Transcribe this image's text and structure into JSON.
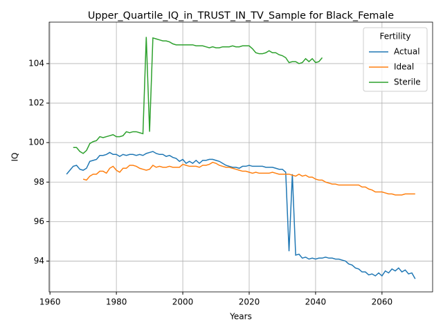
{
  "chart_data": {
    "type": "line",
    "title": "Upper_Quartile_IQ_in_TRUST_IN_TV_Sample for Black_Female",
    "xlabel": "Years",
    "ylabel": "IQ",
    "legend_title": "Fertility",
    "legend": "upper right",
    "grid": true,
    "x": [
      1965,
      1966,
      1967,
      1968,
      1969,
      1970,
      1971,
      1972,
      1973,
      1974,
      1975,
      1976,
      1977,
      1978,
      1979,
      1980,
      1981,
      1982,
      1983,
      1984,
      1985,
      1986,
      1987,
      1988,
      1989,
      1990,
      1991,
      1992,
      1993,
      1994,
      1995,
      1996,
      1997,
      1998,
      1999,
      2000,
      2001,
      2002,
      2003,
      2004,
      2005,
      2006,
      2007,
      2008,
      2009,
      2010,
      2011,
      2012,
      2013,
      2014,
      2015,
      2016,
      2017,
      2018,
      2019,
      2020,
      2021,
      2022,
      2023,
      2024,
      2025,
      2026,
      2027,
      2028,
      2029,
      2030,
      2031,
      2032,
      2033,
      2034,
      2035,
      2036,
      2037,
      2038,
      2039,
      2040,
      2041,
      2042,
      2043,
      2044,
      2045,
      2046,
      2047,
      2048,
      2049,
      2050,
      2051,
      2052,
      2053,
      2054,
      2055,
      2056,
      2057,
      2058,
      2059,
      2060,
      2061,
      2062,
      2063,
      2064,
      2065,
      2066,
      2067,
      2068,
      2069,
      2070
    ],
    "series": [
      {
        "name": "Actual",
        "color": "#1f77b4",
        "values": [
          98.4,
          98.6,
          98.8,
          98.85,
          98.65,
          98.6,
          98.7,
          99.05,
          99.1,
          99.15,
          99.35,
          99.35,
          99.4,
          99.5,
          99.4,
          99.4,
          99.3,
          99.4,
          99.35,
          99.4,
          99.4,
          99.35,
          99.4,
          99.35,
          99.45,
          99.5,
          99.55,
          99.45,
          99.4,
          99.4,
          99.3,
          99.35,
          99.25,
          99.2,
          99.05,
          99.15,
          98.95,
          99.05,
          98.95,
          99.1,
          98.95,
          99.1,
          99.1,
          99.15,
          99.15,
          99.1,
          99.05,
          98.95,
          98.85,
          98.8,
          98.75,
          98.75,
          98.7,
          98.8,
          98.8,
          98.85,
          98.8,
          98.8,
          98.8,
          98.8,
          98.75,
          98.75,
          98.75,
          98.7,
          98.65,
          98.65,
          98.5,
          94.5,
          98.4,
          94.3,
          94.35,
          94.15,
          94.2,
          94.1,
          94.15,
          94.1,
          94.15,
          94.15,
          94.2,
          94.15,
          94.15,
          94.1,
          94.1,
          94.05,
          94.0,
          93.85,
          93.8,
          93.65,
          93.6,
          93.45,
          93.45,
          93.3,
          93.35,
          93.25,
          93.4,
          93.25,
          93.5,
          93.4,
          93.6,
          93.5,
          93.65,
          93.45,
          93.55,
          93.35,
          93.4,
          93.1
        ]
      },
      {
        "name": "Ideal",
        "color": "#ff7f0e",
        "values": [
          null,
          null,
          null,
          null,
          null,
          98.15,
          98.1,
          98.3,
          98.4,
          98.4,
          98.55,
          98.55,
          98.45,
          98.7,
          98.8,
          98.6,
          98.5,
          98.7,
          98.7,
          98.85,
          98.85,
          98.8,
          98.7,
          98.65,
          98.6,
          98.65,
          98.85,
          98.75,
          98.8,
          98.75,
          98.75,
          98.8,
          98.75,
          98.75,
          98.75,
          98.9,
          98.85,
          98.8,
          98.8,
          98.8,
          98.75,
          98.85,
          98.85,
          98.9,
          99.0,
          98.95,
          98.85,
          98.8,
          98.75,
          98.75,
          98.7,
          98.65,
          98.6,
          98.55,
          98.55,
          98.5,
          98.45,
          98.5,
          98.45,
          98.45,
          98.45,
          98.45,
          98.5,
          98.45,
          98.4,
          98.4,
          98.4,
          98.4,
          98.35,
          98.3,
          98.4,
          98.3,
          98.35,
          98.25,
          98.25,
          98.15,
          98.1,
          98.1,
          98.0,
          97.95,
          97.9,
          97.9,
          97.85,
          97.85,
          97.85,
          97.85,
          97.85,
          97.85,
          97.85,
          97.75,
          97.75,
          97.65,
          97.6,
          97.5,
          97.5,
          97.5,
          97.45,
          97.4,
          97.4,
          97.35,
          97.35,
          97.35,
          97.4,
          97.4,
          97.4,
          97.4
        ]
      },
      {
        "name": "Sterile",
        "color": "#2ca02c",
        "values": [
          null,
          null,
          99.75,
          99.75,
          99.55,
          99.45,
          99.6,
          99.95,
          100.05,
          100.1,
          100.3,
          100.25,
          100.3,
          100.35,
          100.4,
          100.3,
          100.3,
          100.35,
          100.55,
          100.5,
          100.55,
          100.55,
          100.5,
          100.45,
          105.35,
          100.55,
          105.3,
          105.25,
          105.2,
          105.15,
          105.15,
          105.1,
          105.0,
          104.95,
          104.95,
          104.95,
          104.95,
          104.95,
          104.95,
          104.9,
          104.9,
          104.9,
          104.85,
          104.8,
          104.85,
          104.8,
          104.8,
          104.85,
          104.85,
          104.85,
          104.9,
          104.85,
          104.85,
          104.9,
          104.9,
          104.9,
          104.75,
          104.55,
          104.5,
          104.5,
          104.55,
          104.65,
          104.55,
          104.55,
          104.45,
          104.4,
          104.3,
          104.05,
          104.1,
          104.1,
          104.0,
          104.05,
          104.25,
          104.1,
          104.25,
          104.05,
          104.1,
          104.3,
          null,
          null,
          null,
          null,
          null,
          null,
          null,
          null,
          null,
          null,
          null,
          null,
          null,
          null,
          null,
          null,
          null,
          null,
          null,
          null,
          null,
          null,
          null,
          null,
          null,
          null,
          null,
          null
        ]
      }
    ],
    "xlim": [
      1959.75,
      2075.25
    ],
    "xticks": [
      1960,
      1980,
      2000,
      2020,
      2040,
      2060
    ],
    "ylim": [
      92.44,
      106.1
    ],
    "yticks": [
      94,
      96,
      98,
      100,
      102,
      104
    ]
  }
}
